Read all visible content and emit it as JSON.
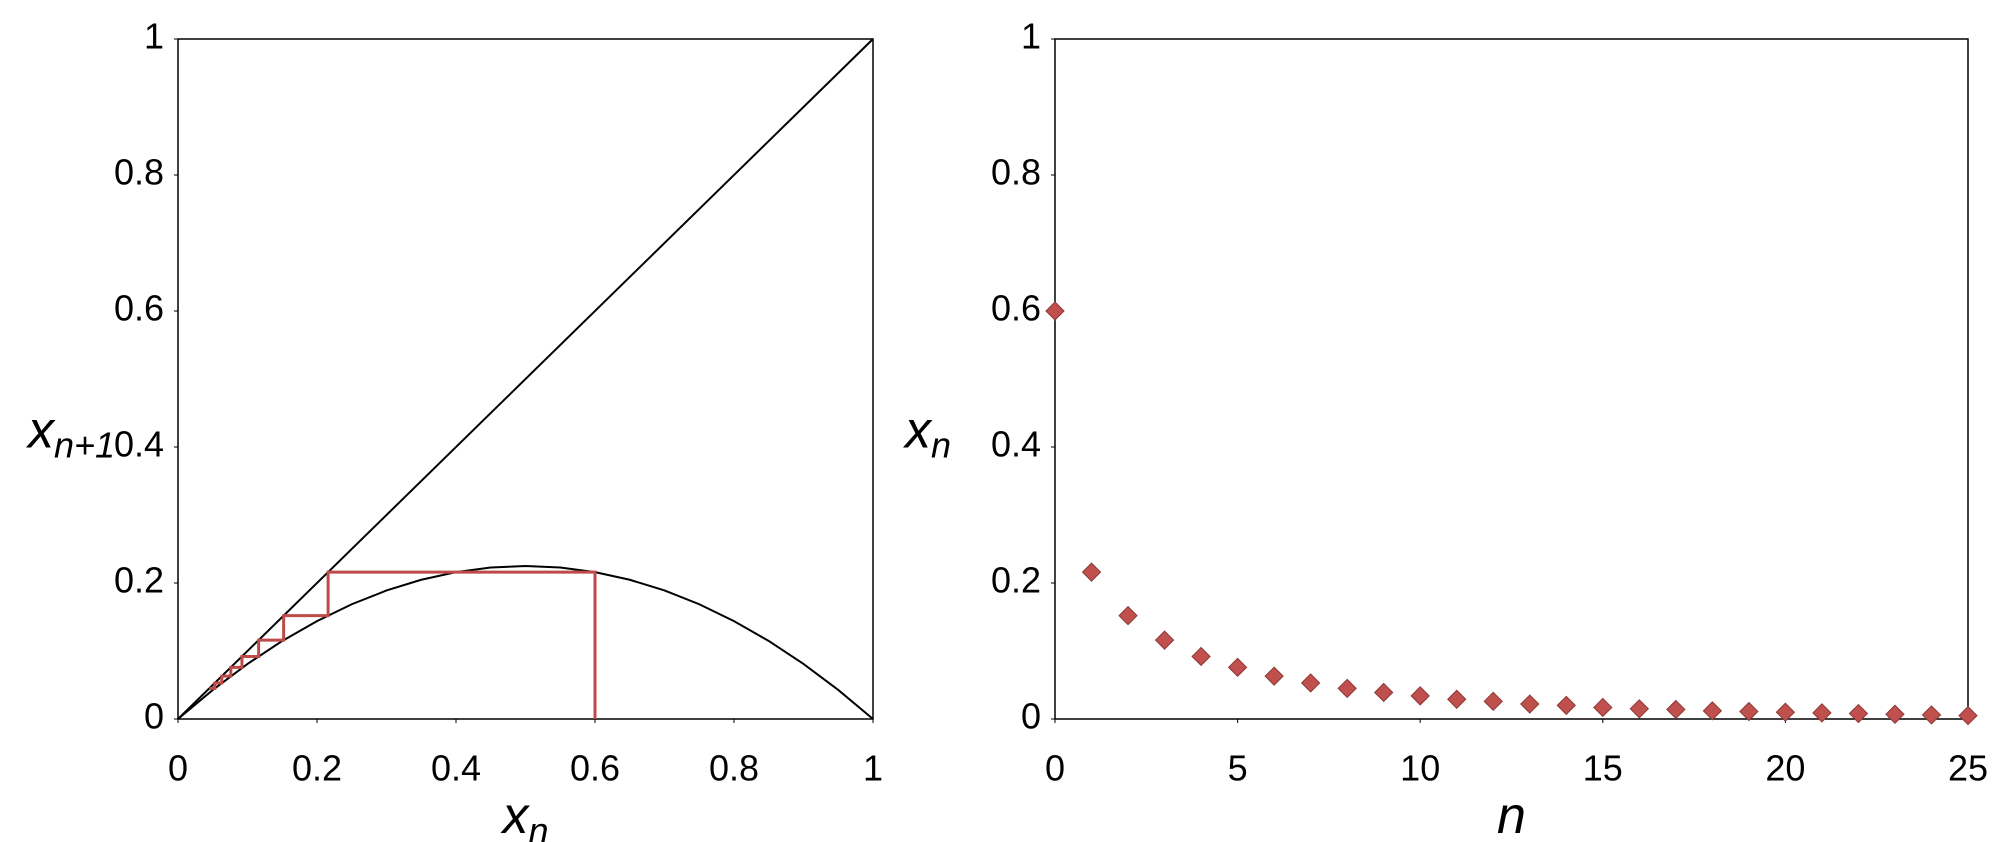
{
  "chart_data": [
    {
      "type": "line",
      "x_label": {
        "base": "x",
        "sub": "n"
      },
      "y_label": {
        "base": "x",
        "sub": "n+1"
      },
      "xlim": [
        0,
        1
      ],
      "ylim": [
        0,
        1
      ],
      "xticks": [
        0,
        0.2,
        0.4,
        0.6,
        0.8,
        1
      ],
      "yticks": [
        0,
        0.2,
        0.4,
        0.6,
        0.8,
        1
      ],
      "series": [
        {
          "color": "#000000",
          "x": [
            0,
            1
          ],
          "values": [
            0,
            1
          ]
        },
        {
          "color": "#000000",
          "x": [
            0,
            0.05,
            0.1,
            0.15,
            0.2,
            0.25,
            0.3,
            0.35,
            0.4,
            0.45,
            0.5,
            0.55,
            0.6,
            0.65,
            0.7,
            0.75,
            0.8,
            0.85,
            0.9,
            0.95,
            1
          ],
          "values": [
            0,
            0.04275,
            0.081,
            0.11475,
            0.144,
            0.16875,
            0.189,
            0.20475,
            0.216,
            0.22275,
            0.225,
            0.22275,
            0.216,
            0.20475,
            0.189,
            0.16875,
            0.144,
            0.11475,
            0.081,
            0.04275,
            0
          ]
        },
        {
          "color": "#be4b48",
          "x": [
            0.6,
            0.6,
            0.216,
            0.216,
            0.152,
            0.152,
            0.116,
            0.116,
            0.092,
            0.092,
            0.076,
            0.076,
            0.063,
            0.063,
            0.053,
            0.053,
            0.045
          ],
          "values": [
            0,
            0.216,
            0.216,
            0.152,
            0.152,
            0.116,
            0.116,
            0.092,
            0.092,
            0.076,
            0.076,
            0.063,
            0.063,
            0.053,
            0.053,
            0.045,
            0.045
          ]
        }
      ]
    },
    {
      "type": "scatter",
      "x_label": {
        "base": "n"
      },
      "y_label": {
        "base": "x",
        "sub": "n"
      },
      "xlim": [
        0,
        25
      ],
      "ylim": [
        0,
        1
      ],
      "xticks": [
        0,
        5,
        10,
        15,
        20,
        25
      ],
      "yticks": [
        0,
        0.2,
        0.4,
        0.6,
        0.8,
        1
      ],
      "color": "#c0504d",
      "x": [
        0,
        1,
        2,
        3,
        4,
        5,
        6,
        7,
        8,
        9,
        10,
        11,
        12,
        13,
        14,
        15,
        16,
        17,
        18,
        19,
        20,
        21,
        22,
        23,
        24,
        25
      ],
      "values": [
        0.6,
        0.216,
        0.152,
        0.116,
        0.092,
        0.076,
        0.063,
        0.053,
        0.045,
        0.039,
        0.034,
        0.029,
        0.026,
        0.022,
        0.02,
        0.017,
        0.015,
        0.014,
        0.012,
        0.011,
        0.01,
        0.009,
        0.008,
        0.007,
        0.006,
        0.005
      ]
    }
  ]
}
